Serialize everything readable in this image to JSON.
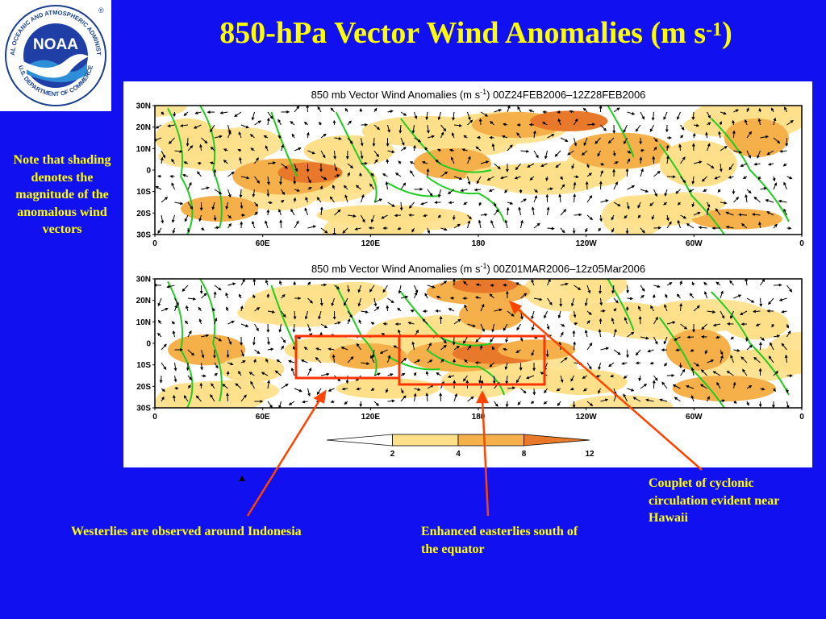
{
  "slide": {
    "title_main": "850-hPa Vector Wind Anomalies  (m s",
    "title_sup": "-1",
    "title_close": ")",
    "background": "#1010f0",
    "text_color": "#ffff00"
  },
  "logo": {
    "name": "NOAA",
    "ring_text_top": "NATIONAL OCEANIC AND ATMOSPHERIC ADMINISTRATION",
    "ring_text_bottom": "U.S. DEPARTMENT OF COMMERCE",
    "registered": "®"
  },
  "note": "Note that shading denotes the magnitude of the anomalous wind vectors",
  "panels": [
    {
      "title_pre": "850 mb Vector Wind Anomalies (m s",
      "title_sup": "-1",
      "title_post": ")  00Z24FEB2006–12Z28FEB2006"
    },
    {
      "title_pre": "850 mb Vector Wind Anomalies (m s",
      "title_sup": "-1",
      "title_post": ")  00Z01MAR2006–12z05Mar2006"
    }
  ],
  "axes": {
    "lat_ticks": [
      "30N",
      "20N",
      "10N",
      "0",
      "10S",
      "20S",
      "30S"
    ],
    "lon_ticks": [
      "0",
      "60E",
      "120E",
      "180",
      "120W",
      "60W",
      "0"
    ]
  },
  "colorbar": {
    "labels": [
      "2",
      "4",
      "8",
      "12"
    ],
    "colors": [
      "#ffffff",
      "#ffe08a",
      "#f5b04a",
      "#e8782a"
    ]
  },
  "annotations": {
    "westerlies": "Westerlies are observed around Indonesia",
    "easterlies": "Enhanced easterlies south of the equator",
    "hawaii": "Couplet of cyclonic circulation evident near Hawaii"
  }
}
